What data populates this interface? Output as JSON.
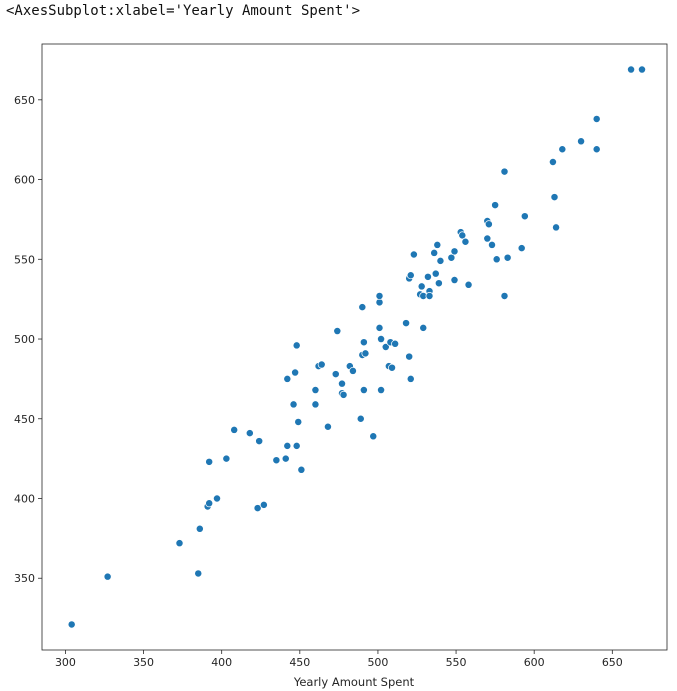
{
  "output_repr": "<AxesSubplot:xlabel='Yearly Amount Spent'>",
  "colors": {
    "point": "#1f77b4",
    "point_edge": "#ffffff",
    "axis": "#262626",
    "background": "#ffffff"
  },
  "chart_data": {
    "type": "scatter",
    "title": "",
    "xlabel": "Yearly Amount Spent",
    "ylabel": "",
    "xlim": [
      285,
      685
    ],
    "ylim": [
      305,
      685
    ],
    "grid": false,
    "legend": "none",
    "x_ticks": [
      300,
      350,
      400,
      450,
      500,
      550,
      600,
      650
    ],
    "y_ticks": [
      350,
      400,
      450,
      500,
      550,
      600,
      650
    ],
    "series": [
      {
        "x": [
          304,
          327,
          373,
          385,
          386,
          391,
          392,
          392,
          397,
          403,
          408,
          418,
          423,
          424,
          427,
          435,
          441,
          442,
          442,
          446,
          447,
          448,
          448,
          449,
          451,
          460,
          460,
          462,
          464,
          468,
          473,
          474,
          477,
          477,
          478,
          482,
          484,
          489,
          490,
          490,
          491,
          491,
          492,
          497,
          501,
          501,
          501,
          502,
          502,
          505,
          507,
          508,
          509,
          511,
          518,
          520,
          520,
          521,
          521,
          523,
          527,
          528,
          529,
          529,
          532,
          533,
          533,
          536,
          537,
          538,
          539,
          540,
          547,
          549,
          549,
          553,
          554,
          556,
          558,
          570,
          570,
          571,
          573,
          575,
          576,
          581,
          581,
          583,
          592,
          594,
          612,
          613,
          614,
          618,
          630,
          640,
          640,
          662,
          669
        ],
        "y": [
          321,
          351,
          372,
          353,
          381,
          395,
          397,
          423,
          400,
          425,
          443,
          441,
          394,
          436,
          396,
          424,
          425,
          433,
          475,
          459,
          479,
          433,
          496,
          448,
          418,
          459,
          468,
          483,
          484,
          445,
          478,
          505,
          472,
          466,
          465,
          483,
          480,
          450,
          490,
          520,
          498,
          468,
          491,
          439,
          507,
          523,
          527,
          500,
          468,
          495,
          483,
          498,
          482,
          497,
          510,
          489,
          538,
          475,
          540,
          553,
          528,
          533,
          507,
          527,
          539,
          530,
          527,
          554,
          541,
          559,
          535,
          549,
          551,
          555,
          537,
          567,
          565,
          561,
          534,
          574,
          563,
          572,
          559,
          584,
          550,
          527,
          605,
          551,
          557,
          577,
          611,
          589,
          570,
          619,
          624,
          619,
          638,
          669,
          669
        ]
      }
    ]
  }
}
